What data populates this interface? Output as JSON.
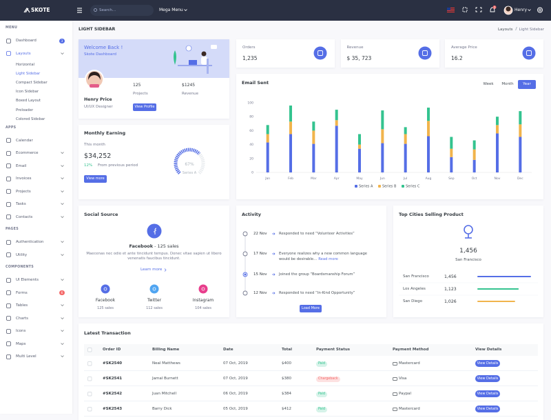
{
  "topbar": {
    "brand": "SKOTE",
    "search_placeholder": "Search...",
    "mega_menu": "Mega Menu",
    "notifications": "3",
    "user": "Henry"
  },
  "sidebar": {
    "sections": [
      {
        "title": "MENU",
        "items": [
          {
            "label": "Dashboard",
            "badge": "3",
            "badge_color": "#556ee6"
          },
          {
            "label": "Layouts",
            "active": true,
            "submenu": true,
            "children": [
              "Horizontal",
              "Light Sidebar",
              "Compact Sidebar",
              "Icon Sidebar",
              "Boxed Layout",
              "Preloader",
              "Colored Sidebar"
            ],
            "active_child": 1
          }
        ]
      },
      {
        "title": "APPS",
        "items": [
          {
            "label": "Calendar"
          },
          {
            "label": "Ecommerce",
            "submenu": true
          },
          {
            "label": "Email",
            "submenu": true
          },
          {
            "label": "Invoices",
            "submenu": true
          },
          {
            "label": "Projects",
            "submenu": true
          },
          {
            "label": "Tasks",
            "submenu": true
          },
          {
            "label": "Contacts",
            "submenu": true
          }
        ]
      },
      {
        "title": "PAGES",
        "items": [
          {
            "label": "Authentication",
            "submenu": true
          },
          {
            "label": "Utility",
            "submenu": true
          }
        ]
      },
      {
        "title": "COMPONENTS",
        "items": [
          {
            "label": "UI Elements",
            "submenu": true
          },
          {
            "label": "Forms",
            "badge": "6",
            "badge_color": "#f46a6a"
          },
          {
            "label": "Tables",
            "submenu": true
          },
          {
            "label": "Charts",
            "submenu": true
          },
          {
            "label": "Icons",
            "submenu": true
          },
          {
            "label": "Maps",
            "submenu": true
          },
          {
            "label": "Multi Level",
            "submenu": true
          }
        ]
      }
    ]
  },
  "page": {
    "title": "LIGHT SIDEBAR",
    "breadcrumb": [
      "Layouts",
      "Light Sidebar"
    ]
  },
  "welcome": {
    "title": "Welcome Back !",
    "subtitle": "Skote Dashboard",
    "name": "Henry Price",
    "role": "UI/UX Designer",
    "stats": [
      {
        "value": "125",
        "label": "Projects"
      },
      {
        "value": "$1245",
        "label": "Revenue"
      }
    ],
    "button": "View Profile"
  },
  "stats": [
    {
      "label": "Orders",
      "value": "1,235"
    },
    {
      "label": "Revenue",
      "value": "$ 35, 723"
    },
    {
      "label": "Average Price",
      "value": "16.2"
    }
  ],
  "monthly_earning": {
    "title": "Monthly Earning",
    "period": "This month",
    "amount": "$34,252",
    "change": "12%",
    "change_text": "From previous period",
    "button": "View more",
    "gauge": {
      "value": 67,
      "label": "67%",
      "name": "Series A",
      "lim": [
        0,
        100
      ],
      "color": "#556ee6"
    }
  },
  "chart_data": {
    "type": "bar",
    "stacked": true,
    "title": "Email Sent",
    "tabs": [
      "Week",
      "Month",
      "Year"
    ],
    "active_tab": 2,
    "categories": [
      "Jan",
      "Feb",
      "Mar",
      "Apr",
      "May",
      "Jun",
      "Jul",
      "Aug",
      "Sep",
      "Oct",
      "Nov",
      "Dec"
    ],
    "series": [
      {
        "name": "Series A",
        "color": "#556ee6",
        "values": [
          43,
          55,
          41,
          67,
          34,
          42,
          41,
          52,
          22,
          18,
          56,
          51
        ]
      },
      {
        "name": "Series B",
        "color": "#f1b44c",
        "values": [
          12,
          18,
          19,
          8,
          6,
          20,
          14,
          22,
          12,
          15,
          12,
          18
        ]
      },
      {
        "name": "Series C",
        "color": "#34c38f",
        "values": [
          13,
          23,
          13,
          15,
          15,
          27,
          10,
          19,
          17,
          13,
          12,
          19
        ]
      }
    ],
    "ylim": [
      0,
      100
    ],
    "yticks": [
      0,
      20,
      40,
      60,
      80,
      100
    ],
    "legend": "bottom"
  },
  "social_source": {
    "title": "Social Source",
    "featured": {
      "name": "Facebook",
      "detail": "- 125 sales"
    },
    "text": "Maecenas nec odio et ante tincidunt tempus. Donec vitae sapien ut libero venenatis faucibus tincidunt.",
    "link": "Learn more",
    "networks": [
      {
        "name": "Facebook",
        "sales": "125 sales",
        "color": "#556ee6"
      },
      {
        "name": "Twitter",
        "sales": "112 sales",
        "color": "#50a5f1"
      },
      {
        "name": "Instagram",
        "sales": "104 sales",
        "color": "#e83e8c"
      }
    ]
  },
  "activity": {
    "title": "Activity",
    "items": [
      {
        "date": "22 Nov",
        "text": "Responded to need “Volunteer Activities”"
      },
      {
        "date": "17 Nov",
        "text": "Everyone realizes why a new common language would be desirable...",
        "link": "Read more"
      },
      {
        "date": "15 Nov",
        "text": "Joined the group “Boardsmanship Forum”",
        "active": true
      },
      {
        "date": "12 Nov",
        "text": "Responded to need “In-Kind Opportunity”"
      }
    ],
    "button": "Load More"
  },
  "top_cities": {
    "title": "Top Cities Selling Product",
    "featured_value": "1,456",
    "featured_city": "San Francisco",
    "cities": [
      "San Francisco",
      "Los Angeles",
      "San Diego"
    ],
    "values": [
      1456,
      1123,
      1026
    ],
    "value_labels": [
      "1,456",
      "1,123",
      "1,026"
    ],
    "colors": [
      "#556ee6",
      "#34c38f",
      "#f1b44c"
    ]
  },
  "transactions": {
    "title": "Latest Transaction",
    "columns": [
      "Order ID",
      "Billing Name",
      "Date",
      "Total",
      "Payment Status",
      "Payment Method",
      "View Details"
    ],
    "rows": [
      [
        "#SK2540",
        "Neal Matthews",
        "07 Oct, 2019",
        "$400",
        "Paid",
        "Mastercard",
        "View Details"
      ],
      [
        "#SK2541",
        "Jamal Burnett",
        "07 Oct, 2019",
        "$380",
        "Chargeback",
        "Visa",
        "View Details"
      ],
      [
        "#SK2542",
        "Juan Mitchell",
        "06 Oct, 2019",
        "$384",
        "Paid",
        "Paypal",
        "View Details"
      ],
      [
        "#SK2543",
        "Barry Dick",
        "05 Oct, 2019",
        "$412",
        "Paid",
        "Mastercard",
        "View Details"
      ]
    ],
    "status_tones": [
      "success",
      "danger",
      "success",
      "success"
    ]
  }
}
